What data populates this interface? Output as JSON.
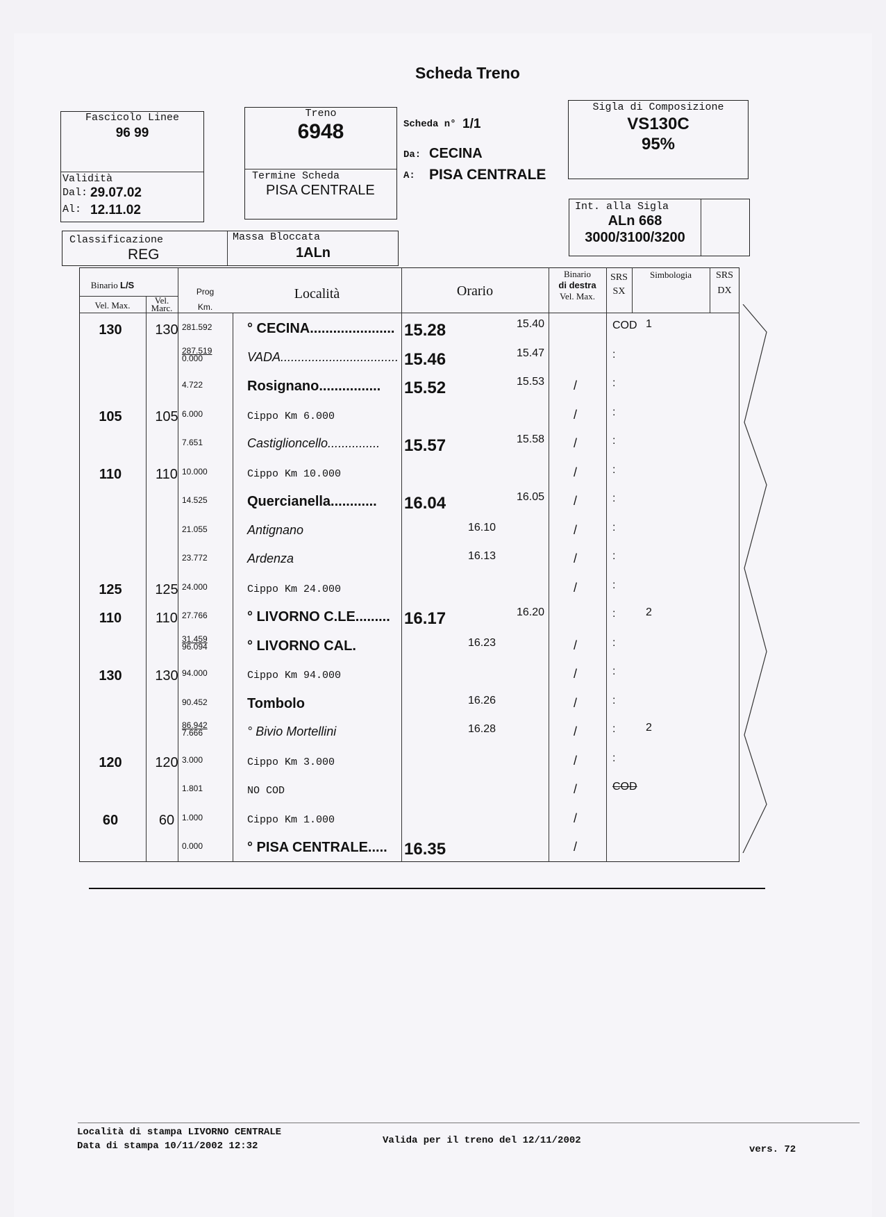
{
  "title": "Scheda Treno",
  "fascicolo": {
    "label": "Fascicolo Linee",
    "value": "96 99"
  },
  "validita": {
    "label": "Validità",
    "dal_label": "Dal:",
    "dal": "29.07.02",
    "al_label": "Al:",
    "al": "12.11.02"
  },
  "treno": {
    "label": "Treno",
    "value": "6948",
    "termine_label": "Termine Scheda",
    "termine": "PISA CENTRALE"
  },
  "scheda": {
    "label": "Scheda n°",
    "value": "1/1",
    "da_label": "Da:",
    "da": "CECINA",
    "a_label": "A:",
    "a": "PISA CENTRALE"
  },
  "sigla": {
    "label": "Sigla di Composizione",
    "value": "VS130C",
    "percent": "95%"
  },
  "int_sigla": {
    "label": "Int. alla Sigla",
    "value": "ALn 668",
    "sub": "3000/3100/3200"
  },
  "classificazione": {
    "label": "Classificazione",
    "value": "REG"
  },
  "massa": {
    "label": "Massa Bloccata",
    "value": "1ALn"
  },
  "table": {
    "headers": {
      "binario_ls": "Binario ",
      "binario_ls_bold": "L/S",
      "vel_max": "Vel. Max.",
      "vel_marc": "Vel. Marc.",
      "prog": "Prog",
      "km": "Km.",
      "localita": "Località",
      "orario": "Orario",
      "binario_destra_1": "Binario",
      "binario_destra_2": "di destra",
      "binario_destra_3": "Vel. Max.",
      "srs_sx_1": "SRS",
      "srs_sx_2": "SX",
      "simbologia": "Simbologia",
      "srs_dx_1": "SRS",
      "srs_dx_2": "DX"
    },
    "rows": [
      {
        "vmax": "130",
        "vmarc": "130",
        "prog": "281.592",
        "loc": "° CECINA......................",
        "style": "bold",
        "arr": "15.28",
        "dep": "15.40",
        "bin": "",
        "srs": "COD",
        "simb": "1"
      },
      {
        "prog_top": "287.519",
        "prog": "0.000",
        "loc": "VADA..................................",
        "style": "italic",
        "arr": "15.46",
        "dep": "15.47",
        "bin": "",
        "srs": ":"
      },
      {
        "prog": "4.722",
        "loc": "Rosignano................",
        "style": "bold",
        "arr": "15.52",
        "dep": "15.53",
        "bin": "/",
        "srs": ":"
      },
      {
        "vmax": "105",
        "vmarc": "105",
        "prog": "6.000",
        "loc": "Cippo Km 6.000",
        "style": "mono",
        "bin": "/",
        "srs": ":"
      },
      {
        "prog": "7.651",
        "loc": "Castiglioncello...............",
        "style": "italic",
        "arr": "15.57",
        "dep": "15.58",
        "bin": "/",
        "srs": ":"
      },
      {
        "vmax": "110",
        "vmarc": "110",
        "prog": "10.000",
        "loc": "Cippo Km 10.000",
        "style": "mono",
        "bin": "/",
        "srs": ":"
      },
      {
        "prog": "14.525",
        "loc": "Quercianella............",
        "style": "bold",
        "arr": "16.04",
        "dep": "16.05",
        "bin": "/",
        "srs": ":"
      },
      {
        "prog": "21.055",
        "loc": "Antignano",
        "style": "italic",
        "tra": "16.10",
        "bin": "/",
        "srs": ":"
      },
      {
        "prog": "23.772",
        "loc": "Ardenza",
        "style": "italic",
        "tra": "16.13",
        "bin": "/",
        "srs": ":"
      },
      {
        "vmax": "125",
        "vmarc": "125",
        "prog": "24.000",
        "loc": "Cippo Km 24.000",
        "style": "mono",
        "bin": "/",
        "srs": ":"
      },
      {
        "vmax": "110",
        "vmarc": "110",
        "prog": "27.766",
        "loc": "° LIVORNO C.LE.........",
        "style": "bold",
        "arr": "16.17",
        "dep": "16.20",
        "bin": "",
        "srs": ":",
        "simb": "2"
      },
      {
        "prog_top": "31.459",
        "prog": "96.094",
        "loc": "° LIVORNO CAL.",
        "style": "bold",
        "tra": "16.23",
        "bin": "/",
        "srs": ":"
      },
      {
        "vmax": "130",
        "vmarc": "130",
        "prog": "94.000",
        "loc": "Cippo Km 94.000",
        "style": "mono",
        "bin": "/",
        "srs": ":"
      },
      {
        "prog": "90.452",
        "loc": "Tombolo",
        "style": "bold",
        "tra": "16.26",
        "bin": "/",
        "srs": ":"
      },
      {
        "prog_top": "86.942",
        "prog": "7.666",
        "loc": "° Bivio Mortellini",
        "style": "italic",
        "tra": "16.28",
        "bin": "/",
        "srs": ":",
        "simb": "2"
      },
      {
        "vmax": "120",
        "vmarc": "120",
        "prog": "3.000",
        "loc": "Cippo Km 3.000",
        "style": "mono",
        "bin": "/",
        "srs": ":"
      },
      {
        "prog": "1.801",
        "loc": "NO COD",
        "style": "mono",
        "bin": "/",
        "srs": "COD",
        "srs_struck": true
      },
      {
        "vmax": "60",
        "vmarc": "60",
        "prog": "1.000",
        "loc": "Cippo Km 1.000",
        "style": "mono",
        "bin": "/",
        "srs": ""
      },
      {
        "prog": "0.000",
        "loc": "° PISA CENTRALE.....",
        "style": "bold",
        "arr": "16.35",
        "bin": "/",
        "srs": ""
      }
    ]
  },
  "footer": {
    "localita_stampa": "Località di stampa LIVORNO CENTRALE",
    "data_stampa": "Data di stampa 10/11/2002 12:32",
    "valida": "Valida per il treno del 12/11/2002",
    "versione": "vers. 72"
  }
}
